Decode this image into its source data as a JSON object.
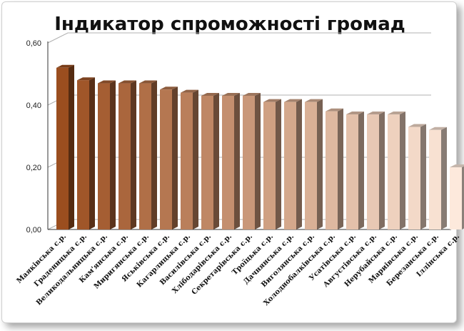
{
  "chart_data": {
    "type": "bar",
    "title": "Індикатор спроможності громад",
    "xlabel": "",
    "ylabel": "",
    "ylim": [
      0,
      0.6
    ],
    "yticks": [
      "0,00",
      "0,20",
      "0,40",
      "0,60"
    ],
    "grid": true,
    "legend": "none",
    "categories": [
      "Маяківська с.р.",
      "Граденицька с.р.",
      "Великодальницька с.р.",
      "Кам'янська с.р.",
      "Миригянська с.р.",
      "Яськівська с.р.",
      "Кагарлицька с.р.",
      "Василівська с.р.",
      "Хлібодарівська с.р.",
      "Секретарівська с.р.",
      "Троїцька с.р.",
      "Дачнянська с.р.",
      "Виголянська с.р.",
      "Холоднобалківська с.р.",
      "Усатівська с.р.",
      "Августівська с.р.",
      "Нерубайська с.р.",
      "Мариівська с.р.",
      "Березанська с.р.",
      "Іллінська с.р."
    ],
    "values": [
      0.52,
      0.48,
      0.47,
      0.47,
      0.47,
      0.45,
      0.44,
      0.43,
      0.43,
      0.43,
      0.41,
      0.41,
      0.41,
      0.38,
      0.37,
      0.37,
      0.37,
      0.33,
      0.32,
      0.2
    ],
    "colors": {
      "start": "#9b4e1f",
      "end": "#fde9dc",
      "grid": "#b0b0b0",
      "axis": "#333333"
    }
  }
}
